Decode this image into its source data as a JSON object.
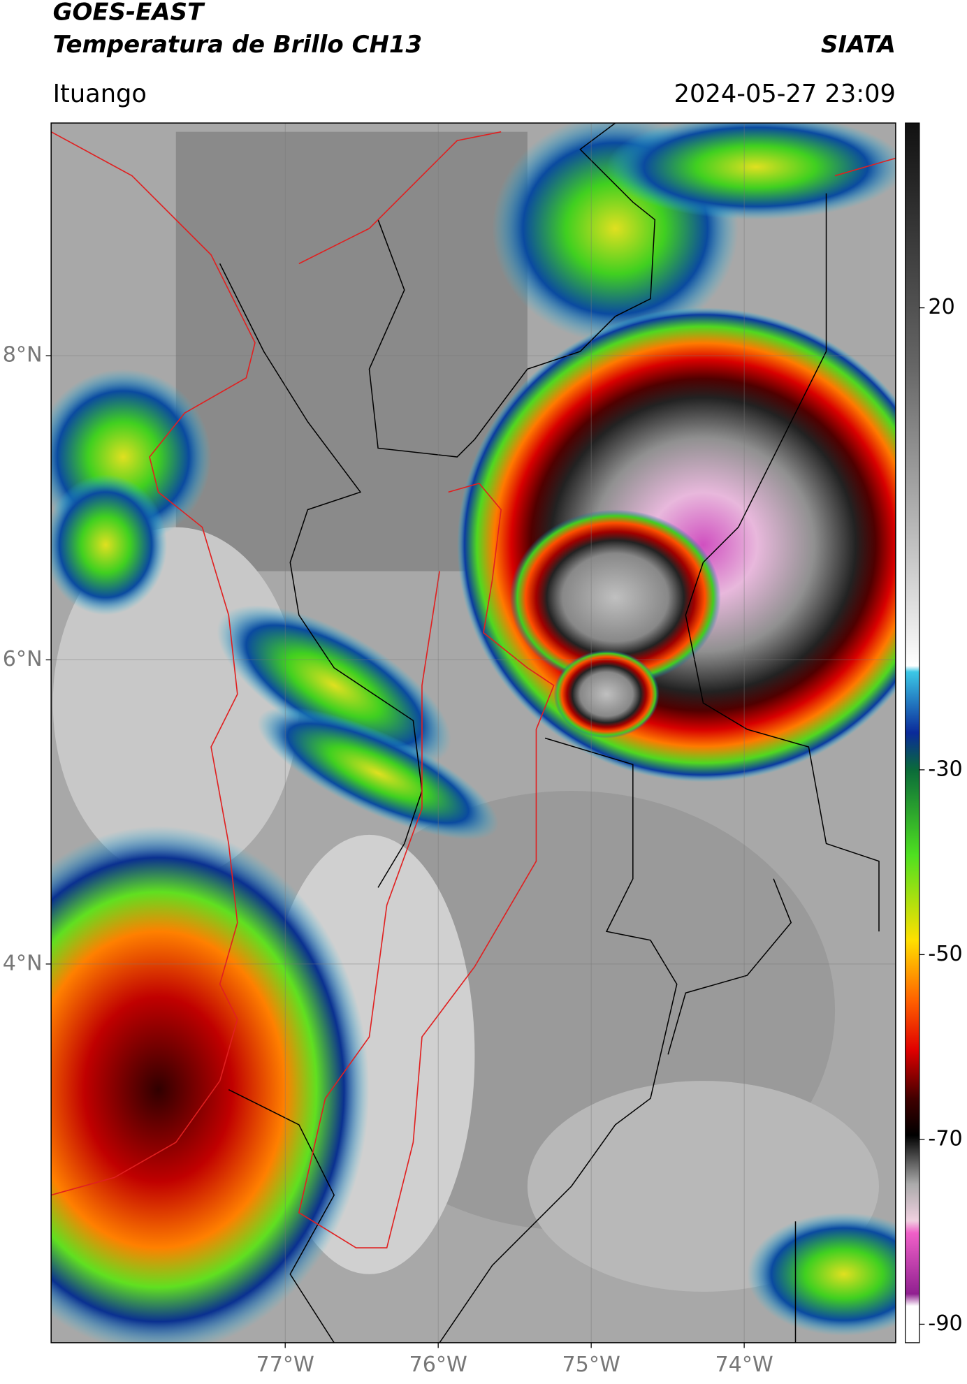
{
  "map": {
    "title": "GOES-EAST",
    "subtitle": "Temperatura de Brillo CH13",
    "source": "SIATA",
    "location": "Ituango",
    "datetime": "2024-05-27 23:09",
    "lonlim": [
      -78.53,
      -73.01
    ],
    "latlim": [
      1.51,
      9.53
    ],
    "lonticks": [
      {
        "value": -77,
        "label": "77°W"
      },
      {
        "value": -76,
        "label": "76°W"
      },
      {
        "value": -75,
        "label": "75°W"
      },
      {
        "value": -74,
        "label": "74°W"
      }
    ],
    "latticks": [
      {
        "value": 8,
        "label": "8°N"
      },
      {
        "value": 6,
        "label": "6°N"
      },
      {
        "value": 4,
        "label": "4°N"
      }
    ],
    "colorbar": {
      "lim": [
        -92,
        40
      ],
      "ticks": [
        20,
        -30,
        -50,
        -70,
        -90
      ]
    }
  }
}
